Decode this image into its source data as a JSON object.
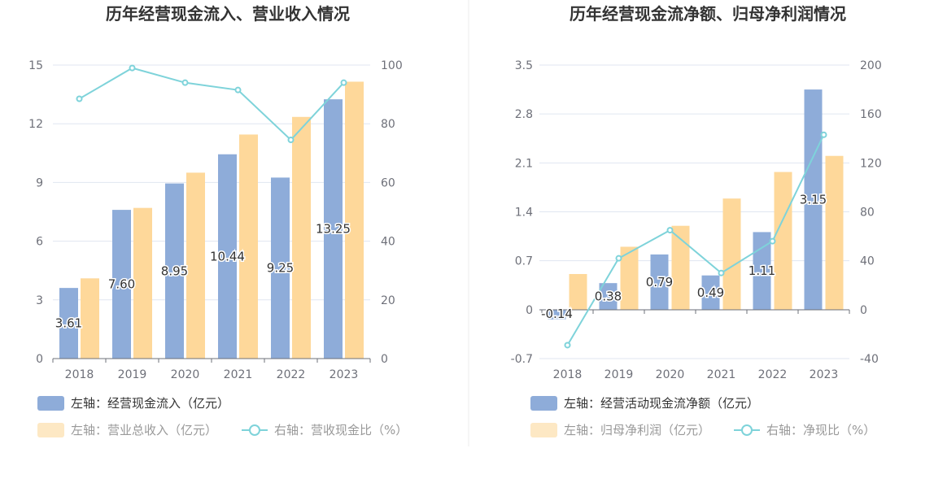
{
  "colors": {
    "bar1": "#8eacd9",
    "bar2": "#fed89a",
    "bar2_legend": "#fde8c4",
    "line": "#7ed3da",
    "grid": "#e0e6f1",
    "axis": "#6e7079"
  },
  "chart_data": [
    {
      "type": "bar",
      "title": "历年经营现金流入、营业收入情况",
      "categories": [
        "2018",
        "2019",
        "2020",
        "2021",
        "2022",
        "2023"
      ],
      "left_axis": {
        "min": 0,
        "max": 15,
        "ticks": [
          "0",
          "3",
          "6",
          "9",
          "12",
          "15"
        ]
      },
      "right_axis": {
        "min": 0,
        "max": 100,
        "ticks": [
          "0",
          "20",
          "40",
          "60",
          "80",
          "100"
        ]
      },
      "series": [
        {
          "name": "左轴：经营现金流入（亿元）",
          "kind": "bar",
          "axis": "left",
          "values": [
            3.61,
            7.6,
            8.95,
            10.44,
            9.25,
            13.25
          ],
          "labels": [
            "3.61",
            "7.60",
            "8.95",
            "10.44",
            "9.25",
            "13.25"
          ]
        },
        {
          "name": "左轴：营业总收入（亿元）",
          "kind": "bar",
          "axis": "left",
          "values": [
            4.1,
            7.7,
            9.5,
            11.45,
            12.35,
            14.15
          ]
        },
        {
          "name": "右轴：营收现金比（%）",
          "kind": "line",
          "axis": "right",
          "values": [
            88.5,
            99,
            94,
            91.5,
            74.5,
            94
          ]
        }
      ],
      "grid": true,
      "legend_position": "bottom-left"
    },
    {
      "type": "bar",
      "title": "历年经营现金流净额、归母净利润情况",
      "categories": [
        "2018",
        "2019",
        "2020",
        "2021",
        "2022",
        "2023"
      ],
      "left_axis": {
        "min": -0.7,
        "max": 3.5,
        "ticks": [
          "-0.7",
          "0",
          "0.7",
          "1.4",
          "2.1",
          "2.8",
          "3.5"
        ]
      },
      "right_axis": {
        "min": -40,
        "max": 200,
        "ticks": [
          "-40",
          "0",
          "40",
          "80",
          "120",
          "160",
          "200"
        ]
      },
      "series": [
        {
          "name": "左轴：经营活动现金流净额（亿元）",
          "kind": "bar",
          "axis": "left",
          "values": [
            -0.14,
            0.38,
            0.79,
            0.49,
            1.11,
            3.15
          ],
          "labels": [
            "-0.14",
            "0.38",
            "0.79",
            "0.49",
            "1.11",
            "3.15"
          ]
        },
        {
          "name": "左轴：归母净利润（亿元）",
          "kind": "bar",
          "axis": "left",
          "values": [
            0.51,
            0.9,
            1.2,
            1.59,
            1.97,
            2.2
          ]
        },
        {
          "name": "右轴：净现比（%）",
          "kind": "line",
          "axis": "right",
          "values": [
            -29,
            42,
            65,
            30,
            56,
            143
          ]
        }
      ],
      "grid": true,
      "legend_position": "bottom-left"
    }
  ]
}
